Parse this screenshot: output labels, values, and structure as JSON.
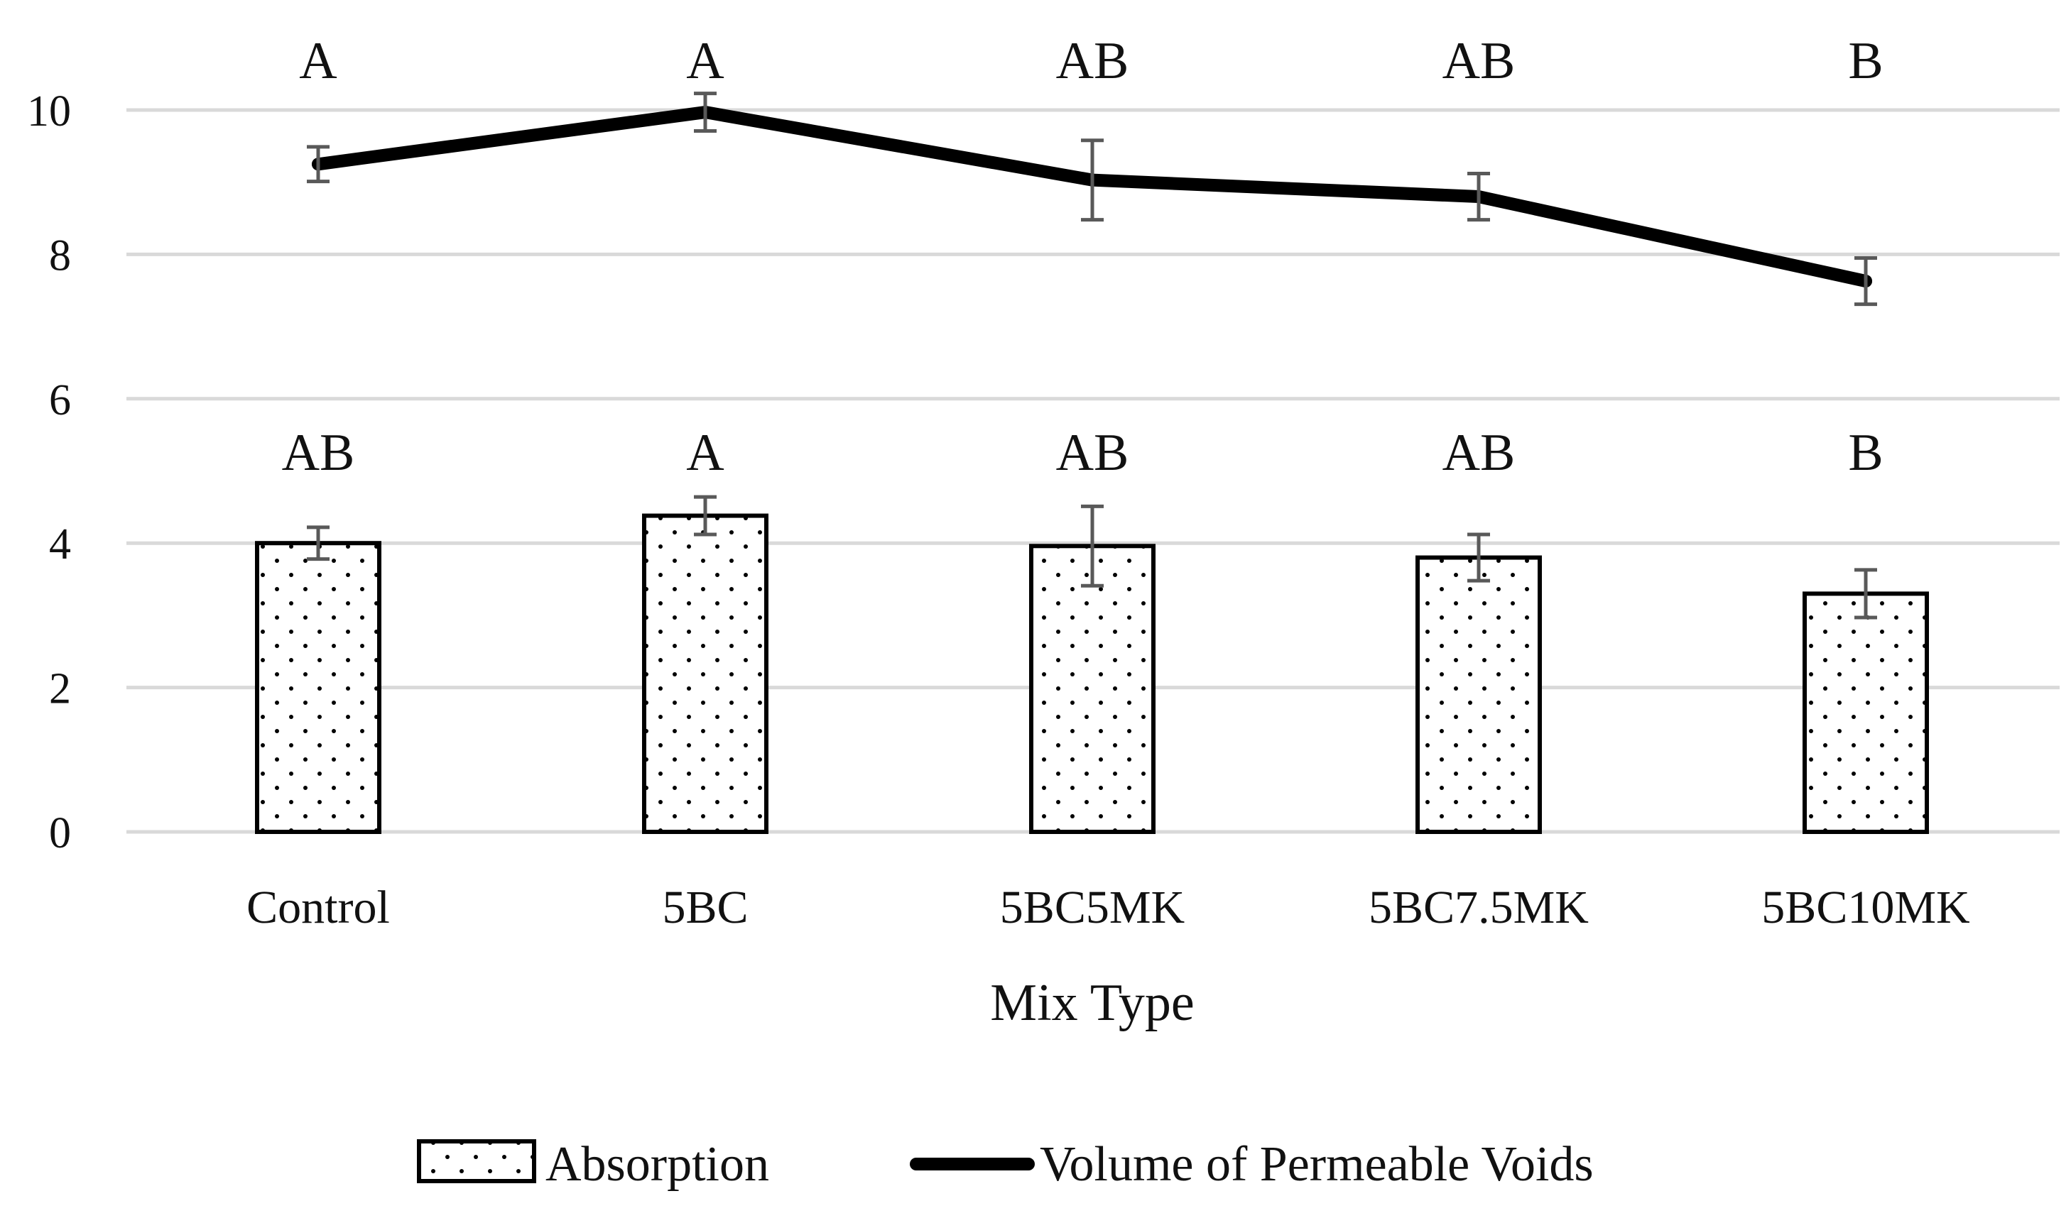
{
  "chart_data": {
    "type": "bar",
    "title": "",
    "xlabel": "Mix Type",
    "ylabel": "",
    "ylim": [
      0,
      10
    ],
    "yticks": [
      "0",
      "2",
      "4",
      "6",
      "8",
      "10"
    ],
    "grid": true,
    "legend_position": "bottom",
    "categories": [
      "Control",
      "5BC",
      "5BC5MK",
      "5BC7.5MK",
      "5BC10MK"
    ],
    "series": [
      {
        "name": "Absorption",
        "kind": "bar",
        "pattern": "dotted",
        "values": [
          4.0,
          4.38,
          3.96,
          3.8,
          3.3
        ],
        "errors": [
          0.22,
          0.26,
          0.55,
          0.32,
          0.33
        ],
        "significance": [
          "AB",
          "A",
          "AB",
          "AB",
          "B"
        ]
      },
      {
        "name": "Volume of Permeable Voids",
        "kind": "line",
        "values": [
          9.25,
          9.97,
          9.03,
          8.8,
          7.63
        ],
        "errors": [
          0.24,
          0.26,
          0.55,
          0.32,
          0.32
        ],
        "significance": [
          "A",
          "A",
          "AB",
          "AB",
          "B"
        ]
      }
    ]
  }
}
